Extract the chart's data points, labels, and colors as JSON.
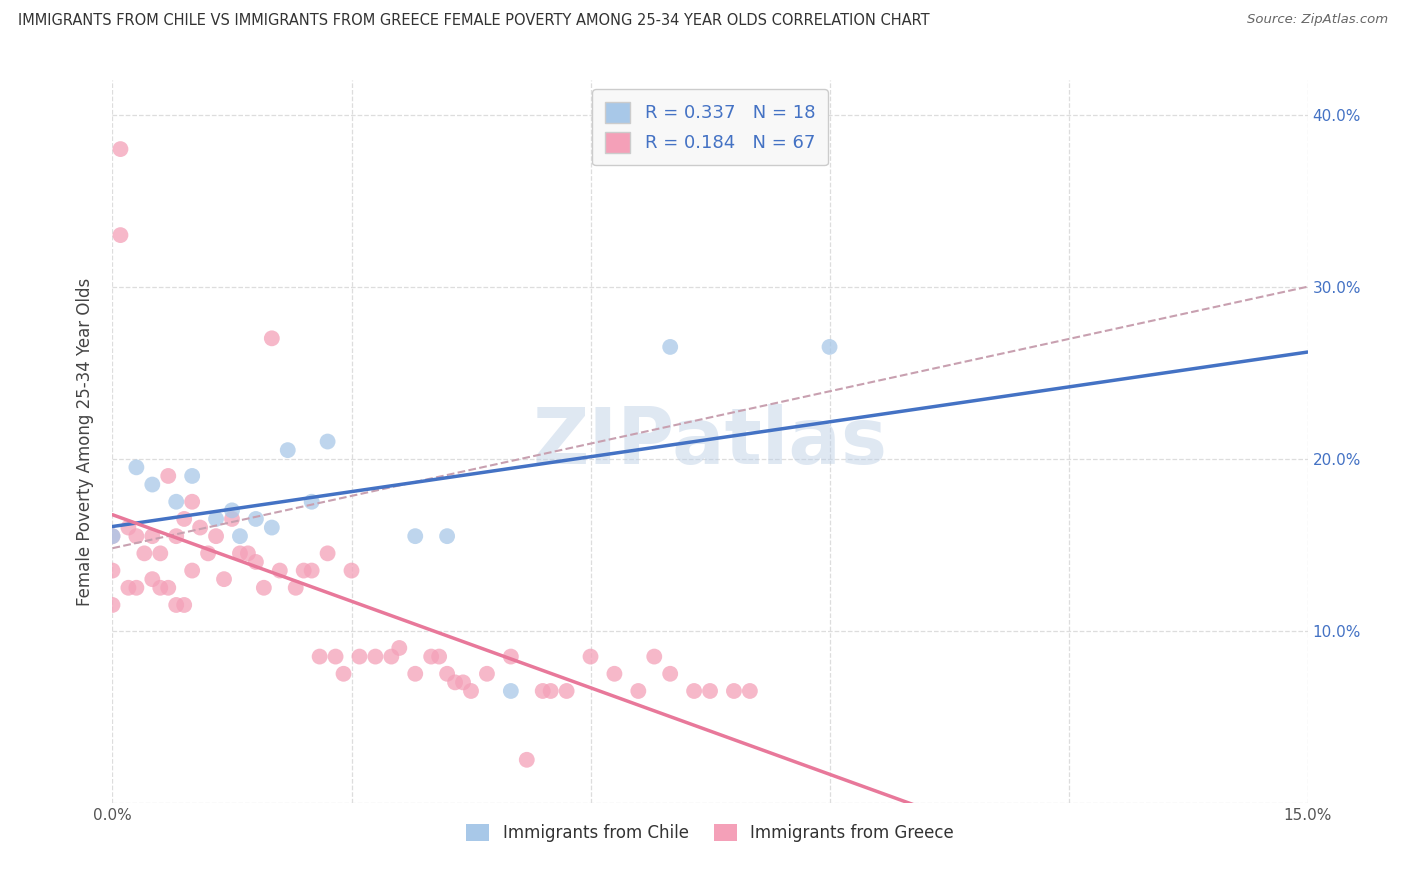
{
  "title": "IMMIGRANTS FROM CHILE VS IMMIGRANTS FROM GREECE FEMALE POVERTY AMONG 25-34 YEAR OLDS CORRELATION CHART",
  "source": "Source: ZipAtlas.com",
  "ylabel": "Female Poverty Among 25-34 Year Olds",
  "xlim": [
    0.0,
    0.15
  ],
  "ylim": [
    0.0,
    0.42
  ],
  "yticks": [
    0.0,
    0.1,
    0.2,
    0.3,
    0.4
  ],
  "xticks": [
    0.0,
    0.03,
    0.06,
    0.09,
    0.12,
    0.15
  ],
  "chile_color": "#a8c8e8",
  "greece_color": "#f4a0b8",
  "chile_line_color": "#4472c4",
  "greece_line_color": "#e8789a",
  "dashed_line_color": "#c0a8b0",
  "chile_R": 0.337,
  "chile_N": 18,
  "greece_R": 0.184,
  "greece_N": 67,
  "watermark": "ZIPatlas",
  "chile_scatter_x": [
    0.0,
    0.003,
    0.005,
    0.008,
    0.01,
    0.013,
    0.015,
    0.016,
    0.018,
    0.02,
    0.022,
    0.025,
    0.027,
    0.038,
    0.042,
    0.05,
    0.07,
    0.09
  ],
  "chile_scatter_y": [
    0.155,
    0.195,
    0.185,
    0.175,
    0.19,
    0.165,
    0.17,
    0.155,
    0.165,
    0.16,
    0.205,
    0.175,
    0.21,
    0.155,
    0.155,
    0.065,
    0.265,
    0.265
  ],
  "greece_scatter_x": [
    0.0,
    0.0,
    0.0,
    0.001,
    0.001,
    0.002,
    0.002,
    0.003,
    0.003,
    0.004,
    0.005,
    0.005,
    0.006,
    0.006,
    0.007,
    0.007,
    0.008,
    0.008,
    0.009,
    0.009,
    0.01,
    0.01,
    0.011,
    0.012,
    0.013,
    0.014,
    0.015,
    0.016,
    0.017,
    0.018,
    0.019,
    0.02,
    0.021,
    0.023,
    0.024,
    0.025,
    0.026,
    0.027,
    0.028,
    0.029,
    0.03,
    0.031,
    0.033,
    0.035,
    0.036,
    0.038,
    0.04,
    0.041,
    0.042,
    0.043,
    0.044,
    0.045,
    0.047,
    0.05,
    0.052,
    0.054,
    0.055,
    0.057,
    0.06,
    0.063,
    0.066,
    0.068,
    0.07,
    0.073,
    0.075,
    0.078,
    0.08
  ],
  "greece_scatter_y": [
    0.155,
    0.135,
    0.115,
    0.38,
    0.33,
    0.16,
    0.125,
    0.155,
    0.125,
    0.145,
    0.155,
    0.13,
    0.145,
    0.125,
    0.19,
    0.125,
    0.155,
    0.115,
    0.165,
    0.115,
    0.175,
    0.135,
    0.16,
    0.145,
    0.155,
    0.13,
    0.165,
    0.145,
    0.145,
    0.14,
    0.125,
    0.27,
    0.135,
    0.125,
    0.135,
    0.135,
    0.085,
    0.145,
    0.085,
    0.075,
    0.135,
    0.085,
    0.085,
    0.085,
    0.09,
    0.075,
    0.085,
    0.085,
    0.075,
    0.07,
    0.07,
    0.065,
    0.075,
    0.085,
    0.025,
    0.065,
    0.065,
    0.065,
    0.085,
    0.075,
    0.065,
    0.085,
    0.075,
    0.065,
    0.065,
    0.065,
    0.065
  ],
  "background_color": "#ffffff",
  "grid_color": "#dddddd",
  "legend_box_color": "#f8f8f8",
  "legend_text_color": "#4472c4"
}
